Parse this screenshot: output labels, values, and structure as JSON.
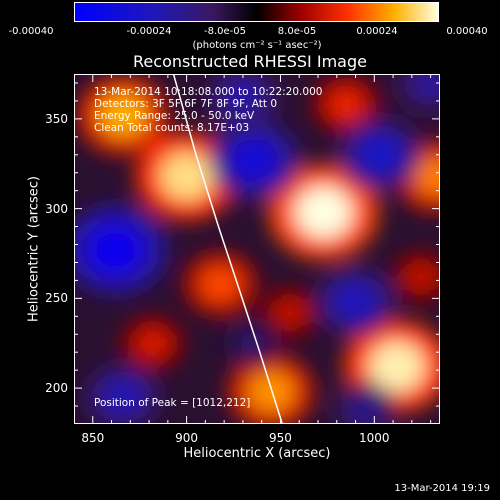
{
  "chart_data": {
    "type": "heatmap",
    "title": "Reconstructed RHESSI Image",
    "xlabel": "Heliocentric X (arcsec)",
    "ylabel": "Heliocentric Y (arcsec)",
    "xlim": [
      840,
      1035
    ],
    "ylim": [
      180,
      375
    ],
    "x_ticks": [
      850,
      900,
      950,
      1000
    ],
    "y_ticks": [
      200,
      250,
      300,
      350
    ],
    "colorbar": {
      "range": [
        -0.0004,
        0.0004
      ],
      "ticks": [
        "-0.00040",
        "-0.00024",
        "-8.0e-05",
        "8.0e-05",
        "0.00024",
        "0.00040"
      ],
      "units_label": "(photons cm⁻² s⁻¹ asec⁻²)"
    },
    "info_lines": [
      "13-Mar-2014 10:18:08.000 to 10:22:20.000",
      "Detectors: 3F 5F 6F 7F 8F 9F, Att 0",
      "Energy Range: 25.0 - 50.0 keV",
      "Clean     Total counts: 8.17E+03"
    ],
    "peak_label": "Position of Peak = [1012,212]",
    "peak_position": [
      1012,
      212
    ],
    "blobs": [
      {
        "x": 900,
        "y": 318,
        "value": 0.00036
      },
      {
        "x": 973,
        "y": 298,
        "value": 0.0004
      },
      {
        "x": 1012,
        "y": 212,
        "value": 0.00038
      },
      {
        "x": 945,
        "y": 198,
        "value": 0.00028
      },
      {
        "x": 866,
        "y": 352,
        "value": 0.0003
      },
      {
        "x": 1033,
        "y": 318,
        "value": 0.00026
      },
      {
        "x": 918,
        "y": 258,
        "value": 0.00022
      },
      {
        "x": 985,
        "y": 358,
        "value": 0.00018
      },
      {
        "x": 882,
        "y": 225,
        "value": 0.00016
      },
      {
        "x": 1025,
        "y": 262,
        "value": 0.00014
      },
      {
        "x": 955,
        "y": 242,
        "value": 0.00014
      },
      {
        "x": 862,
        "y": 277,
        "value": -0.00036
      },
      {
        "x": 936,
        "y": 327,
        "value": -0.0003
      },
      {
        "x": 1003,
        "y": 330,
        "value": -0.00026
      },
      {
        "x": 990,
        "y": 248,
        "value": -0.00024
      },
      {
        "x": 866,
        "y": 195,
        "value": -0.00022
      },
      {
        "x": 930,
        "y": 362,
        "value": -0.0002
      },
      {
        "x": 1030,
        "y": 370,
        "value": -0.00018
      },
      {
        "x": 935,
        "y": 225,
        "value": -0.00012
      },
      {
        "x": 995,
        "y": 188,
        "value": -0.00016
      }
    ],
    "limb_curve": [
      [
        893,
        375
      ],
      [
        905,
        330
      ],
      [
        917,
        290
      ],
      [
        928,
        255
      ],
      [
        939,
        220
      ],
      [
        951,
        180
      ]
    ]
  },
  "footer": {
    "date": "13-Mar-2014 19:19"
  },
  "colors": {
    "limb": "#ffffff"
  }
}
